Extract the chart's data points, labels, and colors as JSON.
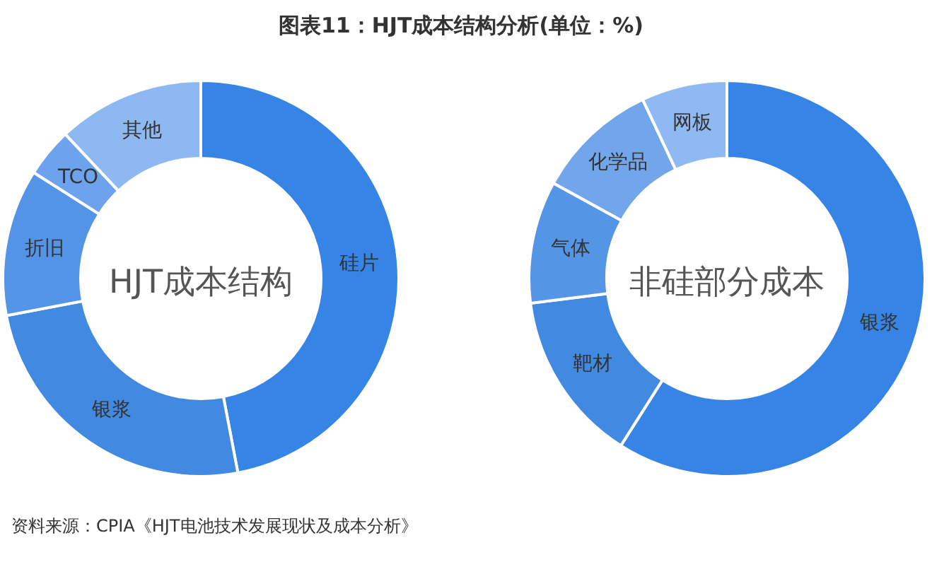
{
  "chart_data": [
    {
      "type": "donut",
      "title": "图表11：HJT成本结构分析(单位：%)",
      "categories": [
        "硅片",
        "银浆",
        "折旧",
        "TCO",
        "其他"
      ],
      "values": [
        47,
        25,
        12,
        4,
        12
      ],
      "colors": [
        "#3684e6",
        "#4189e1",
        "#5494e6",
        "#6ca3ec",
        "#8db8f2"
      ],
      "annotations": [
        "HJT成本结构",
        "资料来源：CPIA《HJT电池技术发展现状及成本分析》"
      ]
    },
    {
      "type": "donut",
      "categories": [
        "银浆",
        "靶材",
        "气体",
        "化学品",
        "网板"
      ],
      "values": [
        59,
        14,
        10,
        10,
        7
      ],
      "colors": [
        "#3684e6",
        "#4189e1",
        "#5595e6",
        "#72a6eb",
        "#8fb9f2"
      ],
      "annotations": [
        "非硅部分成本"
      ]
    }
  ]
}
